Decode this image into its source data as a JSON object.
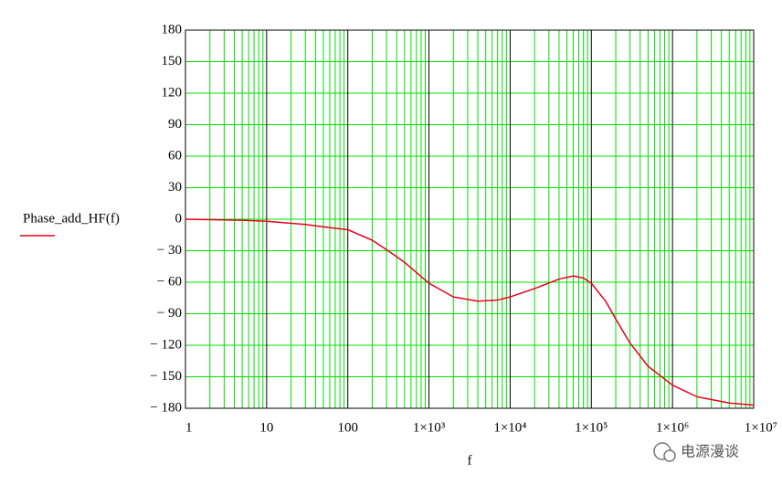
{
  "chart_data": {
    "type": "line",
    "xscale": "log",
    "grid": true,
    "xlabel": "f",
    "x": [
      1,
      5,
      10,
      30,
      60,
      100,
      200,
      300,
      500,
      1000,
      2000,
      4000,
      7000,
      10000,
      20000,
      40000,
      60000,
      80000,
      100000,
      150000,
      200000,
      300000,
      500000,
      1000000,
      2000000,
      5000000,
      10000000
    ],
    "series": [
      {
        "name": "Phase_add_HF(f)",
        "color": "#e8001c",
        "values": [
          0,
          -1,
          -2,
          -5,
          -8,
          -10,
          -20,
          -29,
          -41,
          -61,
          -74,
          -78,
          -77,
          -74,
          -66,
          -57,
          -54,
          -56,
          -61,
          -78,
          -95,
          -118,
          -140,
          -158,
          -169,
          -175,
          -177
        ]
      }
    ],
    "xlim": [
      1,
      10000000
    ],
    "xticks": [
      1,
      10,
      100,
      {
        "value": 1000,
        "label": "1×10³"
      },
      {
        "value": 10000,
        "label": "1×10⁴"
      },
      {
        "value": 100000,
        "label": "1×10⁵"
      },
      {
        "value": 1000000,
        "label": "1×10⁶"
      },
      {
        "value": 10000000,
        "label": "1×10⁷"
      }
    ],
    "ylim": [
      -180,
      180
    ],
    "yticks": [
      180,
      150,
      120,
      90,
      60,
      30,
      0,
      {
        "value": -30,
        "label": "− 30"
      },
      {
        "value": -60,
        "label": "− 60"
      },
      {
        "value": -90,
        "label": "− 90"
      },
      {
        "value": -120,
        "label": "− 120"
      },
      {
        "value": -150,
        "label": "− 150"
      },
      {
        "value": -180,
        "label": "− 180"
      }
    ],
    "watermark": "电源漫谈"
  }
}
